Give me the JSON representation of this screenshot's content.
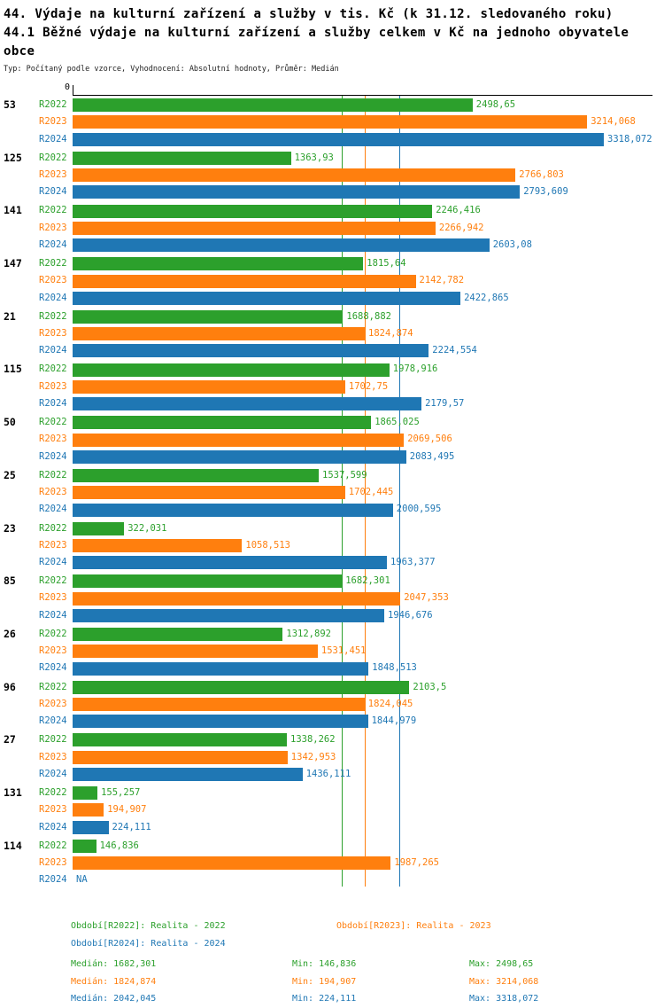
{
  "header": {
    "title_lines": [
      "44. Výdaje na kulturní zařízení a služby v tis. Kč (k 31.12. sledovaného roku)",
      "44.1 Běžné výdaje na kulturní zařízení a služby celkem v Kč na jednoho obyvatele",
      "obce"
    ],
    "subtitle": "Typ: Počítaný podle vzorce, Vyhodnocení: Absolutní hodnoty, Průměr: Medián"
  },
  "chart_data": {
    "type": "bar",
    "orientation": "horizontal",
    "axis_zero_label": "0",
    "xlim": [
      0,
      3318.072
    ],
    "grid": false,
    "categories": [
      "53",
      "125",
      "141",
      "147",
      "21",
      "115",
      "50",
      "25",
      "23",
      "85",
      "26",
      "96",
      "27",
      "131",
      "114"
    ],
    "series": [
      {
        "name": "R2022",
        "color": "#2ca02c",
        "values": [
          2498.65,
          1363.93,
          2246.416,
          1815.64,
          1688.882,
          1978.916,
          1865.025,
          1537.599,
          322.031,
          1682.301,
          1312.892,
          2103.5,
          1338.262,
          155.257,
          146.836
        ],
        "labels": [
          "2498,65",
          "1363,93",
          "2246,416",
          "1815,64",
          "1688,882",
          "1978,916",
          "1865,025",
          "1537,599",
          "322,031",
          "1682,301",
          "1312,892",
          "2103,5",
          "1338,262",
          "155,257",
          "146,836"
        ]
      },
      {
        "name": "R2023",
        "color": "#ff7f0e",
        "values": [
          3214.068,
          2766.803,
          2266.942,
          2142.782,
          1824.874,
          1702.75,
          2069.506,
          1702.445,
          1058.513,
          2047.353,
          1531.451,
          1824.045,
          1342.953,
          194.907,
          1987.265
        ],
        "labels": [
          "3214,068",
          "2766,803",
          "2266,942",
          "2142,782",
          "1824,874",
          "1702,75",
          "2069,506",
          "1702,445",
          "1058,513",
          "2047,353",
          "1531,451",
          "1824,045",
          "1342,953",
          "194,907",
          "1987,265"
        ]
      },
      {
        "name": "R2024",
        "color": "#1f77b4",
        "values": [
          3318.072,
          2793.609,
          2603.08,
          2422.865,
          2224.554,
          2179.57,
          2083.495,
          2000.595,
          1963.377,
          1946.676,
          1848.513,
          1844.979,
          1436.111,
          224.111,
          null
        ],
        "labels": [
          "3318,072",
          "2793,609",
          "2603,08",
          "2422,865",
          "2224,554",
          "2179,57",
          "2083,495",
          "2000,595",
          "1963,377",
          "1946,676",
          "1848,513",
          "1844,979",
          "1436,111",
          "224,111",
          "NA"
        ]
      }
    ],
    "median_lines": [
      {
        "series": "R2022",
        "value": 1682.301,
        "color": "#2ca02c"
      },
      {
        "series": "R2023",
        "value": 1824.874,
        "color": "#ff7f0e"
      },
      {
        "series": "R2024",
        "value": 2042.045,
        "color": "#1f77b4"
      }
    ]
  },
  "legend": {
    "items": [
      {
        "label": "Období[R2022]: Realita - 2022",
        "color": "#2ca02c"
      },
      {
        "label": "Období[R2023]: Realita - 2023",
        "color": "#ff7f0e"
      },
      {
        "label": "Období[R2024]: Realita - 2024",
        "color": "#1f77b4"
      }
    ]
  },
  "stats": {
    "rows": [
      {
        "color": "#2ca02c",
        "median": "Medián: 1682,301",
        "min": "Min: 146,836",
        "max": "Max: 2498,65"
      },
      {
        "color": "#ff7f0e",
        "median": "Medián: 1824,874",
        "min": "Min: 194,907",
        "max": "Max: 3214,068"
      },
      {
        "color": "#1f77b4",
        "median": "Medián: 2042,045",
        "min": "Min: 224,111",
        "max": "Max: 3318,072"
      }
    ]
  }
}
